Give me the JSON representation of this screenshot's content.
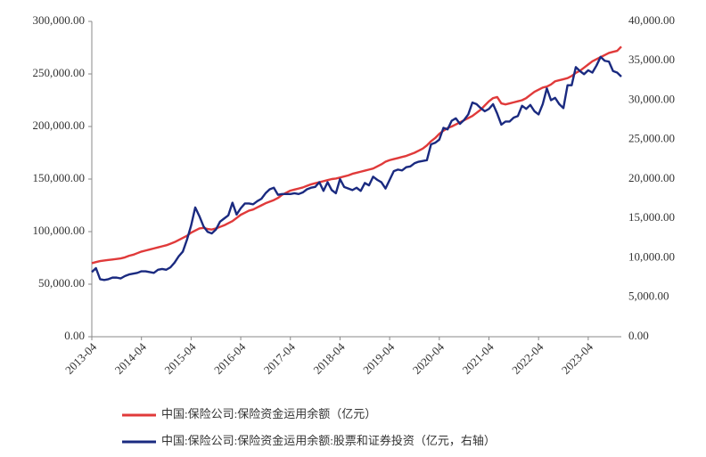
{
  "chart_data": {
    "type": "line",
    "categories": [
      "2013-04",
      null,
      null,
      null,
      null,
      null,
      null,
      null,
      null,
      null,
      null,
      null,
      "2014-04",
      null,
      null,
      null,
      null,
      null,
      null,
      null,
      null,
      null,
      null,
      null,
      "2015-04",
      null,
      null,
      null,
      null,
      null,
      null,
      null,
      null,
      null,
      null,
      null,
      "2016-04",
      null,
      null,
      null,
      null,
      null,
      null,
      null,
      null,
      null,
      null,
      null,
      "2017-04",
      null,
      null,
      null,
      null,
      null,
      null,
      null,
      null,
      null,
      null,
      null,
      "2018-04",
      null,
      null,
      null,
      null,
      null,
      null,
      null,
      null,
      null,
      null,
      null,
      "2019-04",
      null,
      null,
      null,
      null,
      null,
      null,
      null,
      null,
      null,
      null,
      null,
      "2020-04",
      null,
      null,
      null,
      null,
      null,
      null,
      null,
      null,
      null,
      null,
      null,
      "2021-04",
      null,
      null,
      null,
      null,
      null,
      null,
      null,
      null,
      null,
      null,
      null,
      "2022-04",
      null,
      null,
      null,
      null,
      null,
      null,
      null,
      null,
      null,
      null,
      null,
      "2023-04",
      null,
      null,
      null,
      null,
      null,
      null,
      null,
      null
    ],
    "series": [
      {
        "name": "中国:保险公司:保险资金运用余额（亿元）",
        "color": "#e03a3a",
        "axis": "y",
        "values": [
          70000,
          71000,
          72000,
          72500,
          73000,
          73500,
          74000,
          74500,
          75500,
          77000,
          78000,
          79500,
          81000,
          82000,
          83000,
          84000,
          85000,
          86000,
          87000,
          88500,
          90000,
          92000,
          94000,
          96000,
          99000,
          101000,
          103000,
          103500,
          102500,
          102000,
          103000,
          104500,
          106000,
          108000,
          110000,
          113000,
          116000,
          118000,
          120000,
          121000,
          123000,
          125000,
          127000,
          128500,
          130000,
          132000,
          135000,
          137000,
          139000,
          140000,
          141000,
          142000,
          143500,
          145000,
          146000,
          147000,
          148000,
          149000,
          150000,
          150500,
          151500,
          152500,
          153500,
          155000,
          156000,
          157000,
          158000,
          159000,
          160000,
          162000,
          164000,
          166500,
          168000,
          169000,
          170000,
          171000,
          172000,
          173500,
          175000,
          177000,
          179000,
          182000,
          186000,
          189000,
          193000,
          196000,
          198500,
          200000,
          202000,
          204000,
          206000,
          208000,
          210000,
          213000,
          216000,
          220000,
          224000,
          227000,
          228000,
          222000,
          221000,
          222000,
          223000,
          224000,
          225000,
          227000,
          230000,
          233000,
          235000,
          237000,
          238000,
          240000,
          243000,
          244000,
          245000,
          246000,
          248000,
          251000,
          253000,
          256000,
          259000,
          262000,
          264000,
          266000,
          268000,
          270000,
          271000,
          272000,
          276000
        ]
      },
      {
        "name": "中国:保险公司:保险资金运用余额:股票和证券投资（亿元，右轴）",
        "color": "#1a2a80",
        "axis": "y2",
        "values": [
          8200,
          8700,
          7300,
          7200,
          7300,
          7500,
          7500,
          7400,
          7700,
          7900,
          8000,
          8100,
          8300,
          8300,
          8200,
          8100,
          8500,
          8600,
          8500,
          8800,
          9400,
          10200,
          10800,
          12300,
          14100,
          16400,
          15300,
          14000,
          13300,
          13100,
          13600,
          14600,
          15000,
          15400,
          17000,
          15500,
          16300,
          16900,
          16900,
          16800,
          17200,
          17500,
          18200,
          18700,
          18900,
          18000,
          18100,
          18100,
          18100,
          18200,
          18100,
          18300,
          18700,
          18900,
          19000,
          19600,
          18500,
          19600,
          18600,
          18200,
          20000,
          19000,
          18800,
          18600,
          18900,
          18500,
          19500,
          19200,
          20300,
          19900,
          19600,
          18800,
          19900,
          21000,
          21200,
          21100,
          21500,
          21600,
          22000,
          22200,
          22300,
          22400,
          24400,
          24600,
          25000,
          26500,
          26300,
          27400,
          27700,
          27000,
          27500,
          28200,
          29700,
          29500,
          29000,
          28600,
          28900,
          29500,
          28300,
          26900,
          27300,
          27300,
          27800,
          28000,
          29300,
          28900,
          29400,
          28600,
          28200,
          29500,
          31500,
          30000,
          30300,
          29500,
          29000,
          31900,
          31900,
          34200,
          33700,
          33300,
          33800,
          33500,
          34400,
          35500,
          35000,
          34900,
          33700,
          33500,
          33000
        ]
      }
    ],
    "ylim": [
      0,
      300000
    ],
    "yticks": [
      {
        "value": 0,
        "label": "0.00"
      },
      {
        "value": 50000,
        "label": "50,000.00"
      },
      {
        "value": 100000,
        "label": "100,000.00"
      },
      {
        "value": 150000,
        "label": "150,000.00"
      },
      {
        "value": 200000,
        "label": "200,000.00"
      },
      {
        "value": 250000,
        "label": "250,000.00"
      },
      {
        "value": 300000,
        "label": "300,000.00"
      }
    ],
    "y2lim": [
      0,
      40000
    ],
    "y2ticks": [
      {
        "value": 0,
        "label": "0.00"
      },
      {
        "value": 5000,
        "label": "5,000.00"
      },
      {
        "value": 10000,
        "label": "10,000.00"
      },
      {
        "value": 15000,
        "label": "15,000.00"
      },
      {
        "value": 20000,
        "label": "20,000.00"
      },
      {
        "value": 25000,
        "label": "25,000.00"
      },
      {
        "value": 30000,
        "label": "30,000.00"
      },
      {
        "value": 35000,
        "label": "35,000.00"
      },
      {
        "value": 40000,
        "label": "40,000.00"
      }
    ],
    "legend": "bottom"
  }
}
